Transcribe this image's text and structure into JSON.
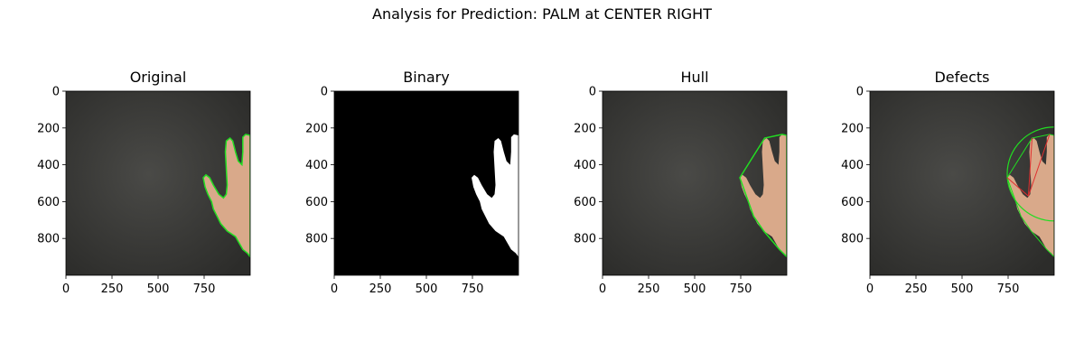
{
  "figure": {
    "title": "Analysis for Prediction: PALM at CENTER RIGHT"
  },
  "colors": {
    "background_dark": "#3a3a38",
    "skin": "#d9a98a",
    "contour_green": "#22dd22",
    "defect_red": "#e03030",
    "binary_bg": "#000000",
    "binary_fg": "#ffffff"
  },
  "chart_data": [
    {
      "type": "image",
      "title": "Original",
      "xlim": [
        0,
        1000
      ],
      "ylim": [
        1000,
        0
      ],
      "xticks": [
        0,
        250,
        500,
        750
      ],
      "yticks": [
        0,
        200,
        400,
        600,
        800
      ],
      "overlay": "hand contour (green)"
    },
    {
      "type": "image",
      "title": "Binary",
      "xlim": [
        0,
        1000
      ],
      "ylim": [
        1000,
        0
      ],
      "xticks": [
        0,
        250,
        500,
        750
      ],
      "yticks": [
        0,
        200,
        400,
        600,
        800
      ],
      "overlay": "binary mask (white hand on black)"
    },
    {
      "type": "image",
      "title": "Hull",
      "xlim": [
        0,
        1000
      ],
      "ylim": [
        1000,
        0
      ],
      "xticks": [
        0,
        250,
        500,
        750
      ],
      "yticks": [
        0,
        200,
        400,
        600,
        800
      ],
      "overlay": "convex hull (green)"
    },
    {
      "type": "image",
      "title": "Defects",
      "xlim": [
        0,
        1000
      ],
      "ylim": [
        1000,
        0
      ],
      "xticks": [
        0,
        250,
        500,
        750
      ],
      "yticks": [
        0,
        200,
        400,
        600,
        800
      ],
      "overlay": "enclosing circle (green), defects (red)"
    }
  ]
}
